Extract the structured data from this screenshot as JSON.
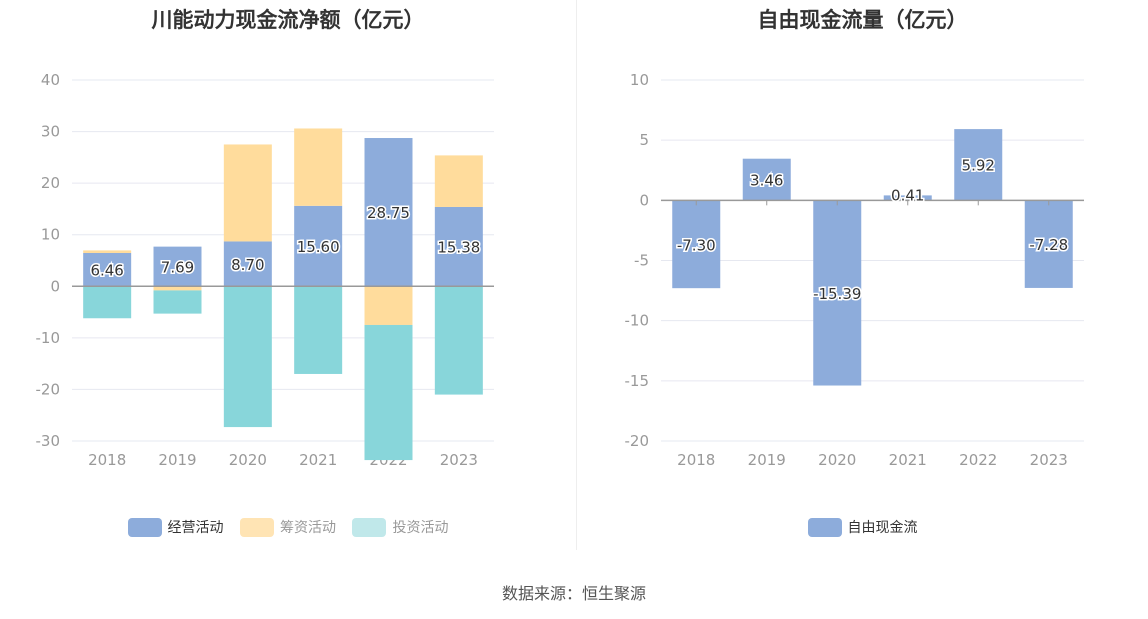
{
  "chart_data": [
    {
      "type": "bar",
      "stacked": true,
      "title": "川能动力现金流净额（亿元）",
      "categories": [
        "2018",
        "2019",
        "2020",
        "2021",
        "2022",
        "2023"
      ],
      "series": [
        {
          "name": "经营活动",
          "color": "#8dacdb",
          "values": [
            6.46,
            7.69,
            8.7,
            15.6,
            28.75,
            15.38
          ],
          "labeled": true
        },
        {
          "name": "筹资活动",
          "color": "#ffdc9c",
          "values": [
            0.5,
            -0.8,
            18.8,
            15.0,
            -7.5,
            10.0
          ],
          "labeled": false
        },
        {
          "name": "投资活动",
          "color": "#88d6da",
          "values": [
            -6.2,
            -4.5,
            -27.3,
            -17.0,
            -26.2,
            -21.0
          ],
          "labeled": false
        }
      ],
      "ylim": [
        -30,
        40
      ],
      "yticks": [
        40,
        30,
        20,
        10,
        0,
        -10,
        -20,
        -30
      ],
      "legend_position": "bottom"
    },
    {
      "type": "bar",
      "title": "自由现金流量（亿元）",
      "categories": [
        "2018",
        "2019",
        "2020",
        "2021",
        "2022",
        "2023"
      ],
      "series": [
        {
          "name": "自由现金流",
          "color": "#8dacdb",
          "values": [
            -7.3,
            3.46,
            -15.39,
            0.41,
            5.92,
            -7.28
          ],
          "labels": [
            "-7.30",
            "3.46",
            "-15.39",
            "0.41",
            "5.92",
            "-7.28"
          ]
        }
      ],
      "ylim": [
        -20,
        10
      ],
      "yticks": [
        10,
        5,
        0,
        -5,
        -10,
        -15,
        -20
      ],
      "legend_position": "bottom"
    }
  ],
  "source": "数据来源：恒生聚源"
}
